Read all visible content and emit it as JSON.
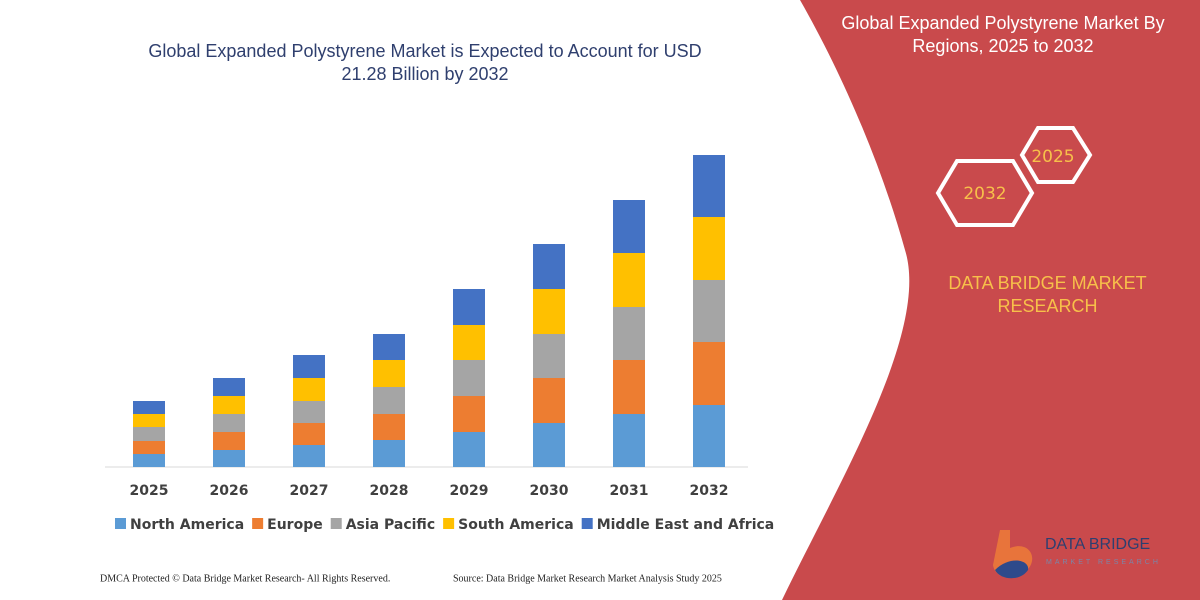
{
  "chart_data": {
    "type": "stacked-bar",
    "title": "Global Expanded Polystyrene Market is Expected to Account for USD 21.28 Billion by 2032",
    "categories": [
      "2025",
      "2026",
      "2027",
      "2028",
      "2029",
      "2030",
      "2031",
      "2032"
    ],
    "series": [
      {
        "name": "North America",
        "color": "#5b9bd5",
        "values": [
          13,
          17,
          22,
          27,
          35,
          44,
          53,
          62
        ]
      },
      {
        "name": "Europe",
        "color": "#ed7d31",
        "values": [
          13,
          18,
          22,
          26,
          36,
          45,
          54,
          63
        ]
      },
      {
        "name": "Asia Pacific",
        "color": "#a5a5a5",
        "values": [
          14,
          18,
          22,
          27,
          36,
          44,
          53,
          62
        ]
      },
      {
        "name": "South America",
        "color": "#ffc000",
        "values": [
          13,
          18,
          23,
          27,
          35,
          45,
          54,
          63
        ]
      },
      {
        "name": "Middle East and Africa",
        "color": "#4472c4",
        "values": [
          13,
          18,
          23,
          26,
          36,
          45,
          53,
          62
        ]
      }
    ],
    "ylim": [
      0,
      312
    ],
    "legend": "bottom"
  },
  "side_panel": {
    "title": "Global Expanded Polystyrene Market By Regions, 2025 to 2032",
    "hex_labels": [
      "2025",
      "2032"
    ],
    "brand": "DATA BRIDGE MARKET RESEARCH"
  },
  "logo": {
    "name": "DATA BRIDGE",
    "tagline": "MARKET RESEARCH"
  },
  "footer": {
    "left": "DMCA Protected © Data Bridge Market Research- All Rights Reserved.",
    "right": "Source: Data Bridge Market Research Market Analysis Study 2025"
  }
}
